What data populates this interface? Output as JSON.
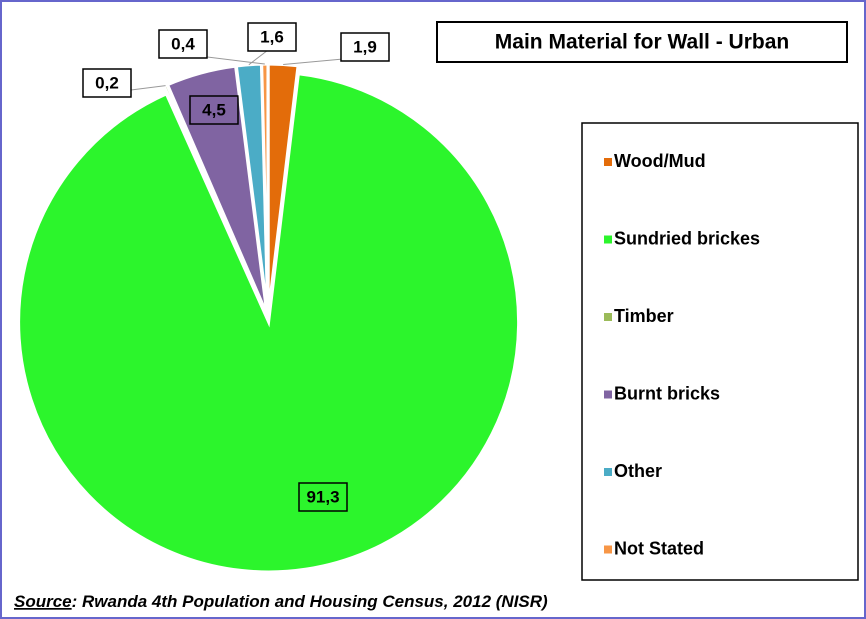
{
  "chart_data": {
    "type": "pie",
    "title": "Main Material for Wall - Urban",
    "categories": [
      "Wood/Mud",
      "Sundried brickes",
      "Timber",
      "Burnt bricks",
      "Other",
      "Not Stated"
    ],
    "values": [
      1.9,
      91.3,
      0.2,
      4.5,
      1.6,
      0.4
    ],
    "value_labels": [
      "1,9",
      "91,3",
      "0,2",
      "4,5",
      "1,6",
      "0,4"
    ],
    "colors": [
      "#e36c0a",
      "#2cf52c",
      "#9bbb59",
      "#8064a2",
      "#4bacc6",
      "#f79646"
    ],
    "legend": "right",
    "source_label": "Source",
    "source_text": ": Rwanda 4th Population and Housing Census, 2012 (NISR)"
  }
}
